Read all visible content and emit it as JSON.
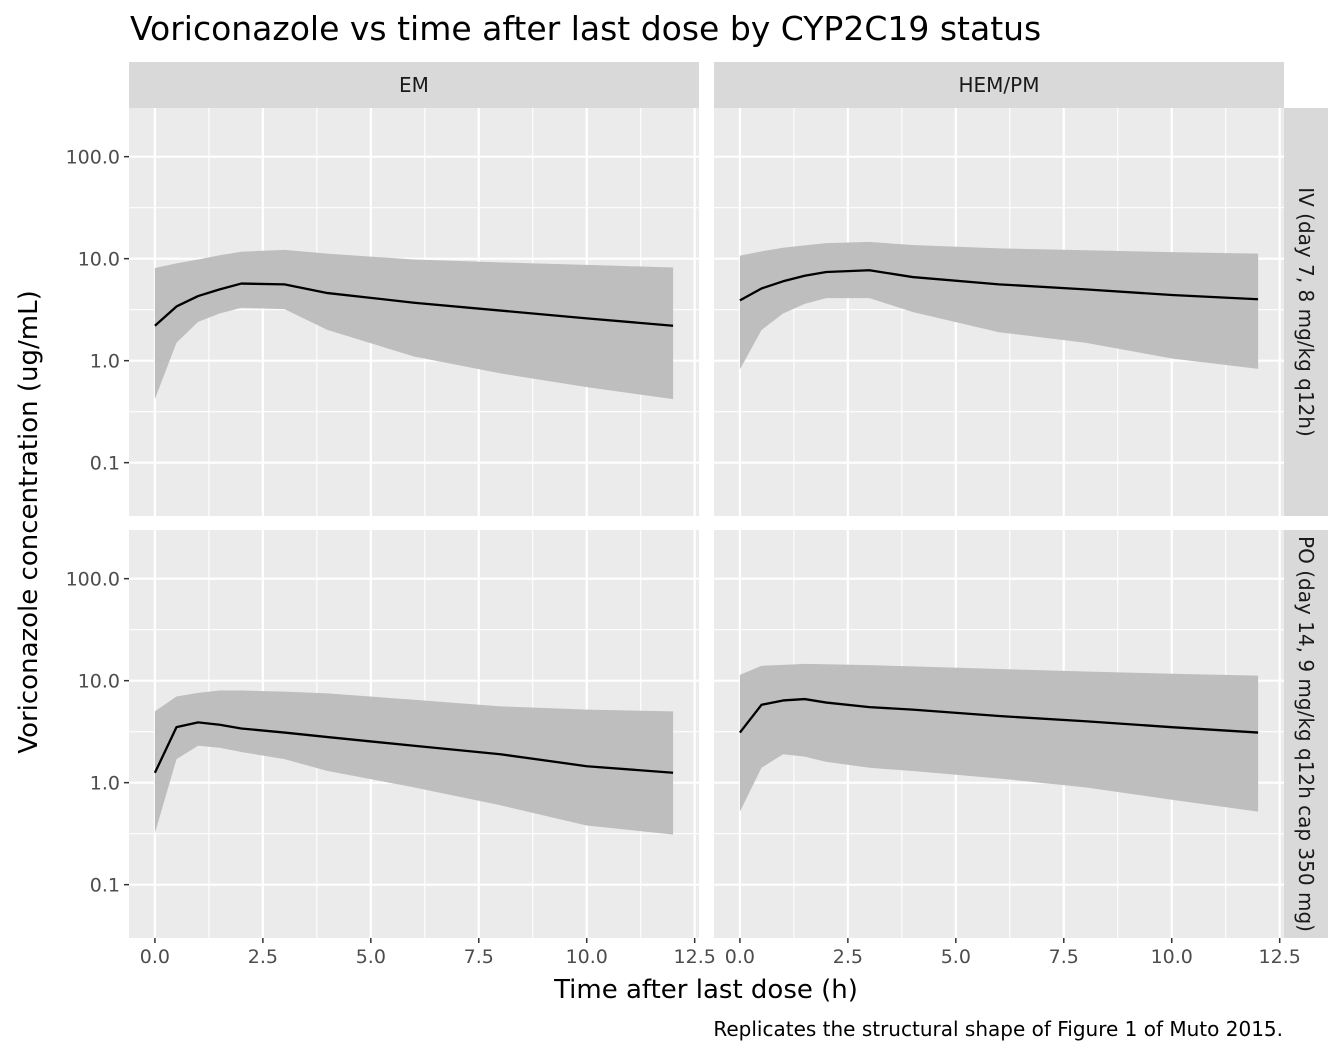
{
  "chart_data": {
    "type": "line",
    "title": "Voriconazole vs time after last dose by CYP2C19 status",
    "xlabel": "Time after last dose (h)",
    "ylabel": "Voriconazole concentration (ug/mL)",
    "caption": "Replicates the structural shape of Figure 1 of Muto 2015.",
    "x_scale": "linear",
    "y_scale": "log10",
    "xlim": [
      -0.6,
      12.6
    ],
    "ylim": [
      0.03,
      300
    ],
    "x_ticks": [
      0,
      2.5,
      5,
      7.5,
      10,
      12.5
    ],
    "x_tick_labels": [
      "0.0",
      "2.5",
      "5.0",
      "7.5",
      "10.0",
      "12.5"
    ],
    "y_ticks": [
      0.1,
      1,
      10,
      100
    ],
    "y_tick_labels": [
      "0.1",
      "1.0",
      "10.0",
      "100.0"
    ],
    "grid": true,
    "legend": "none",
    "band": "90% prediction interval (shaded ribbon)",
    "facet_columns": [
      "EM",
      "HEM/PM"
    ],
    "facet_rows": [
      "IV (day 7, 8 mg/kg q12h)",
      "PO (day 14, 9 mg/kg q12h cap 350 mg)"
    ],
    "panels": [
      {
        "col": "EM",
        "row": "IV (day 7, 8 mg/kg q12h)",
        "x": [
          0,
          0.5,
          1,
          1.5,
          2,
          3,
          4,
          6,
          8,
          10,
          12
        ],
        "median": [
          2.2,
          3.4,
          4.3,
          5.0,
          5.7,
          5.6,
          4.6,
          3.7,
          3.1,
          2.6,
          2.2
        ],
        "lower": [
          0.42,
          1.5,
          2.4,
          2.9,
          3.3,
          3.2,
          2.0,
          1.1,
          0.75,
          0.55,
          0.42
        ],
        "upper": [
          8.1,
          9.0,
          9.8,
          10.8,
          11.7,
          12.2,
          11.2,
          9.8,
          9.2,
          8.7,
          8.2
        ]
      },
      {
        "col": "HEM/PM",
        "row": "IV (day 7, 8 mg/kg q12h)",
        "x": [
          0,
          0.5,
          1,
          1.5,
          2,
          3,
          4,
          6,
          8,
          10,
          12
        ],
        "median": [
          3.9,
          5.1,
          6.0,
          6.8,
          7.4,
          7.7,
          6.6,
          5.6,
          5.0,
          4.4,
          4.0
        ],
        "lower": [
          0.82,
          2.0,
          2.9,
          3.6,
          4.1,
          4.1,
          3.0,
          1.9,
          1.5,
          1.05,
          0.83
        ],
        "upper": [
          10.7,
          11.8,
          12.8,
          13.5,
          14.2,
          14.6,
          13.6,
          12.6,
          12.1,
          11.6,
          11.2
        ]
      },
      {
        "col": "EM",
        "row": "PO (day 14, 9 mg/kg q12h cap 350 mg)",
        "x": [
          0,
          0.5,
          1,
          1.5,
          2,
          3,
          4,
          6,
          8,
          10,
          12
        ],
        "median": [
          1.25,
          3.5,
          3.9,
          3.7,
          3.4,
          3.1,
          2.8,
          2.3,
          1.9,
          1.45,
          1.25
        ],
        "lower": [
          0.32,
          1.7,
          2.3,
          2.2,
          2.0,
          1.7,
          1.3,
          0.9,
          0.6,
          0.38,
          0.31
        ],
        "upper": [
          5.0,
          7.0,
          7.6,
          8.0,
          8.0,
          7.8,
          7.5,
          6.5,
          5.6,
          5.2,
          5.0
        ]
      },
      {
        "col": "HEM/PM",
        "row": "PO (day 14, 9 mg/kg q12h cap 350 mg)",
        "x": [
          0,
          0.5,
          1,
          1.5,
          2,
          3,
          4,
          6,
          8,
          10,
          12
        ],
        "median": [
          3.1,
          5.8,
          6.4,
          6.6,
          6.1,
          5.5,
          5.2,
          4.5,
          4.0,
          3.5,
          3.1
        ],
        "lower": [
          0.52,
          1.4,
          1.9,
          1.8,
          1.6,
          1.4,
          1.3,
          1.1,
          0.9,
          0.68,
          0.52
        ],
        "upper": [
          11.4,
          14.0,
          14.3,
          14.6,
          14.5,
          14.2,
          13.8,
          13.0,
          12.3,
          11.7,
          11.2
        ]
      }
    ],
    "colors": {
      "panel_background": "#ebebeb",
      "strip_background": "#d9d9d9",
      "grid": "#ffffff",
      "ribbon": "#bebebe",
      "line": "#000000",
      "text": "#1a1a1a",
      "tick_text": "#4d4d4d"
    }
  }
}
